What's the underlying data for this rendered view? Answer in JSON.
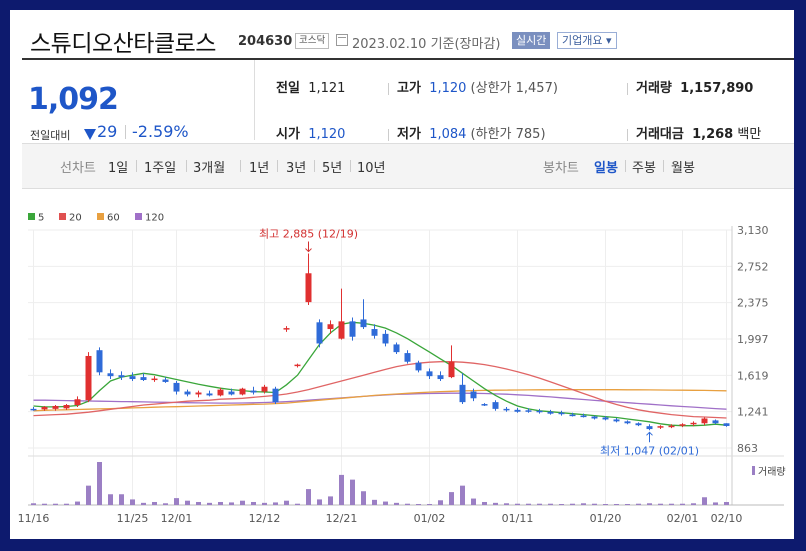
{
  "header": {
    "stock_name": "스튜디오산타클로스",
    "stock_code": "204630",
    "market_badge": "코스닥",
    "date_text": "2023.02.10  기준(장마감)",
    "realtime_badge": "실시간",
    "company_info_badge": "기업개요 ▾"
  },
  "price": {
    "current": "1,092",
    "change_label": "전일대비",
    "change_value": "29",
    "change_pct": "-2.59%"
  },
  "stats": {
    "prev_close_label": "전일",
    "prev_close": "1,121",
    "high_label": "고가",
    "high": "1,120",
    "upper_limit": "(상한가 1,457)",
    "volume_label": "거래량",
    "volume": "1,157,890",
    "open_label": "시가",
    "open": "1,120",
    "low_label": "저가",
    "low": "1,084",
    "lower_limit": "(하한가 785)",
    "amount_label": "거래대금",
    "amount": "1,268",
    "amount_unit": "백만"
  },
  "tabs": {
    "line_chart_label": "선차트",
    "periods": [
      "1일",
      "1주일",
      "3개월",
      "1년",
      "3년",
      "5년",
      "10년"
    ],
    "candle_chart_label": "봉차트",
    "candle_periods": [
      "일봉",
      "주봉",
      "월봉"
    ],
    "active_candle": "일봉"
  },
  "chart_data": {
    "type": "candlestick",
    "ylim": [
      863,
      3130
    ],
    "y_ticks": [
      "3,130",
      "2,752",
      "2,375",
      "1,997",
      "1,619",
      "1,241",
      "863"
    ],
    "x_ticks": [
      "11/16",
      "11/25",
      "12/01",
      "12/12",
      "12/21",
      "01/02",
      "01/11",
      "01/20",
      "02/01",
      "02/10"
    ],
    "legend": [
      {
        "name": "5",
        "color": "#3aa63a"
      },
      {
        "name": "20",
        "color": "#e05050"
      },
      {
        "name": "60",
        "color": "#e8a040"
      },
      {
        "name": "120",
        "color": "#a070c8"
      }
    ],
    "colors": {
      "up": "#e03030",
      "down": "#2f6bd8",
      "ma5": "#3aa63a",
      "ma20": "#e06565",
      "ma60": "#e8a040",
      "ma120": "#a070c8",
      "volume": "#9b7fc4"
    },
    "annotations": {
      "high_label": "최고 2,885 (12/19)",
      "low_label": "최저 1,047 (02/01)"
    },
    "volume_label": "거래량",
    "candles": [
      {
        "o": 1270,
        "h": 1290,
        "l": 1250,
        "c": 1265
      },
      {
        "o": 1265,
        "h": 1300,
        "l": 1250,
        "c": 1290
      },
      {
        "o": 1270,
        "h": 1310,
        "l": 1250,
        "c": 1300
      },
      {
        "o": 1275,
        "h": 1320,
        "l": 1260,
        "c": 1310
      },
      {
        "o": 1310,
        "h": 1400,
        "l": 1290,
        "c": 1370
      },
      {
        "o": 1360,
        "h": 1860,
        "l": 1340,
        "c": 1820
      },
      {
        "o": 1880,
        "h": 1910,
        "l": 1620,
        "c": 1650
      },
      {
        "o": 1640,
        "h": 1680,
        "l": 1580,
        "c": 1610
      },
      {
        "o": 1620,
        "h": 1660,
        "l": 1570,
        "c": 1600
      },
      {
        "o": 1610,
        "h": 1650,
        "l": 1560,
        "c": 1580
      },
      {
        "o": 1600,
        "h": 1640,
        "l": 1560,
        "c": 1570
      },
      {
        "o": 1570,
        "h": 1610,
        "l": 1550,
        "c": 1585
      },
      {
        "o": 1575,
        "h": 1600,
        "l": 1540,
        "c": 1550
      },
      {
        "o": 1540,
        "h": 1560,
        "l": 1420,
        "c": 1450
      },
      {
        "o": 1450,
        "h": 1470,
        "l": 1400,
        "c": 1420
      },
      {
        "o": 1420,
        "h": 1460,
        "l": 1390,
        "c": 1440
      },
      {
        "o": 1430,
        "h": 1460,
        "l": 1400,
        "c": 1410
      },
      {
        "o": 1410,
        "h": 1490,
        "l": 1400,
        "c": 1470
      },
      {
        "o": 1450,
        "h": 1480,
        "l": 1410,
        "c": 1420
      },
      {
        "o": 1420,
        "h": 1490,
        "l": 1410,
        "c": 1480
      },
      {
        "o": 1460,
        "h": 1500,
        "l": 1420,
        "c": 1440
      },
      {
        "o": 1450,
        "h": 1520,
        "l": 1430,
        "c": 1500
      },
      {
        "o": 1480,
        "h": 1500,
        "l": 1320,
        "c": 1340
      },
      {
        "o": 2100,
        "h": 2130,
        "l": 2070,
        "c": 2110
      },
      {
        "o": 1720,
        "h": 1740,
        "l": 1700,
        "c": 1730
      },
      {
        "o": 2380,
        "h": 2885,
        "l": 2350,
        "c": 2680
      },
      {
        "o": 2170,
        "h": 2200,
        "l": 1910,
        "c": 1950
      },
      {
        "o": 2100,
        "h": 2190,
        "l": 2050,
        "c": 2150
      },
      {
        "o": 2000,
        "h": 2520,
        "l": 1990,
        "c": 2180
      },
      {
        "o": 2180,
        "h": 2220,
        "l": 1980,
        "c": 2020
      },
      {
        "o": 2200,
        "h": 2410,
        "l": 2100,
        "c": 2120
      },
      {
        "o": 2100,
        "h": 2150,
        "l": 2000,
        "c": 2030
      },
      {
        "o": 2050,
        "h": 2090,
        "l": 1920,
        "c": 1950
      },
      {
        "o": 1940,
        "h": 1960,
        "l": 1840,
        "c": 1860
      },
      {
        "o": 1850,
        "h": 1880,
        "l": 1740,
        "c": 1760
      },
      {
        "o": 1750,
        "h": 1770,
        "l": 1650,
        "c": 1670
      },
      {
        "o": 1660,
        "h": 1690,
        "l": 1580,
        "c": 1610
      },
      {
        "o": 1620,
        "h": 1660,
        "l": 1560,
        "c": 1580
      },
      {
        "o": 1600,
        "h": 1930,
        "l": 1590,
        "c": 1760
      },
      {
        "o": 1520,
        "h": 1640,
        "l": 1320,
        "c": 1340
      },
      {
        "o": 1450,
        "h": 1480,
        "l": 1350,
        "c": 1380
      },
      {
        "o": 1320,
        "h": 1330,
        "l": 1300,
        "c": 1310
      },
      {
        "o": 1340,
        "h": 1360,
        "l": 1250,
        "c": 1270
      },
      {
        "o": 1270,
        "h": 1290,
        "l": 1240,
        "c": 1260
      },
      {
        "o": 1260,
        "h": 1280,
        "l": 1230,
        "c": 1240
      },
      {
        "o": 1255,
        "h": 1275,
        "l": 1230,
        "c": 1245
      },
      {
        "o": 1250,
        "h": 1270,
        "l": 1220,
        "c": 1240
      },
      {
        "o": 1240,
        "h": 1260,
        "l": 1210,
        "c": 1220
      },
      {
        "o": 1230,
        "h": 1250,
        "l": 1200,
        "c": 1215
      },
      {
        "o": 1210,
        "h": 1230,
        "l": 1190,
        "c": 1205
      },
      {
        "o": 1200,
        "h": 1220,
        "l": 1180,
        "c": 1195
      },
      {
        "o": 1190,
        "h": 1200,
        "l": 1160,
        "c": 1170
      },
      {
        "o": 1180,
        "h": 1195,
        "l": 1150,
        "c": 1160
      },
      {
        "o": 1160,
        "h": 1175,
        "l": 1130,
        "c": 1140
      },
      {
        "o": 1140,
        "h": 1150,
        "l": 1110,
        "c": 1120
      },
      {
        "o": 1120,
        "h": 1130,
        "l": 1090,
        "c": 1100
      },
      {
        "o": 1090,
        "h": 1110,
        "l": 1047,
        "c": 1060
      },
      {
        "o": 1080,
        "h": 1100,
        "l": 1060,
        "c": 1090
      },
      {
        "o": 1090,
        "h": 1110,
        "l": 1070,
        "c": 1095
      },
      {
        "o": 1100,
        "h": 1120,
        "l": 1080,
        "c": 1110
      },
      {
        "o": 1110,
        "h": 1140,
        "l": 1090,
        "c": 1125
      },
      {
        "o": 1120,
        "h": 1180,
        "l": 1100,
        "c": 1170
      },
      {
        "o": 1150,
        "h": 1160,
        "l": 1110,
        "c": 1121
      },
      {
        "o": 1120,
        "h": 1120,
        "l": 1084,
        "c": 1092
      }
    ],
    "volume_rel": [
      0.04,
      0.03,
      0.03,
      0.03,
      0.08,
      0.45,
      1.0,
      0.25,
      0.25,
      0.13,
      0.05,
      0.07,
      0.04,
      0.16,
      0.1,
      0.07,
      0.05,
      0.07,
      0.06,
      0.1,
      0.07,
      0.05,
      0.06,
      0.1,
      0.03,
      0.37,
      0.13,
      0.2,
      0.7,
      0.59,
      0.32,
      0.12,
      0.08,
      0.05,
      0.03,
      0.02,
      0.02,
      0.11,
      0.3,
      0.45,
      0.15,
      0.07,
      0.05,
      0.04,
      0.03,
      0.03,
      0.03,
      0.03,
      0.02,
      0.03,
      0.04,
      0.03,
      0.02,
      0.02,
      0.02,
      0.03,
      0.04,
      0.03,
      0.03,
      0.03,
      0.04,
      0.18,
      0.06,
      0.07
    ],
    "ma5": [
      1300,
      1290,
      1290,
      1295,
      1305,
      1350,
      1460,
      1560,
      1600,
      1620,
      1640,
      1625,
      1600,
      1575,
      1550,
      1525,
      1505,
      1485,
      1470,
      1460,
      1450,
      1445,
      1440,
      1520,
      1620,
      1780,
      1940,
      2060,
      2150,
      2170,
      2160,
      2140,
      2110,
      2060,
      2000,
      1930,
      1860,
      1790,
      1720,
      1640,
      1560,
      1480,
      1410,
      1350,
      1300,
      1270,
      1250,
      1240,
      1230,
      1220,
      1210,
      1200,
      1190,
      1180,
      1165,
      1150,
      1135,
      1115,
      1100,
      1095,
      1095,
      1100,
      1110,
      1100
    ],
    "ma20": [
      1200,
      1205,
      1210,
      1215,
      1225,
      1235,
      1250,
      1265,
      1280,
      1295,
      1310,
      1320,
      1330,
      1340,
      1350,
      1355,
      1360,
      1370,
      1375,
      1380,
      1390,
      1400,
      1410,
      1425,
      1445,
      1470,
      1500,
      1530,
      1560,
      1590,
      1620,
      1650,
      1680,
      1710,
      1730,
      1745,
      1755,
      1760,
      1760,
      1755,
      1745,
      1730,
      1710,
      1685,
      1655,
      1625,
      1590,
      1550,
      1510,
      1470,
      1430,
      1390,
      1350,
      1315,
      1285,
      1260,
      1240,
      1225,
      1210,
      1200,
      1190,
      1185,
      1180,
      1175
    ],
    "ma60": [
      1250,
      1255,
      1258,
      1260,
      1263,
      1267,
      1270,
      1273,
      1276,
      1280,
      1283,
      1287,
      1290,
      1293,
      1296,
      1300,
      1303,
      1306,
      1310,
      1313,
      1317,
      1320,
      1325,
      1330,
      1340,
      1350,
      1360,
      1370,
      1380,
      1390,
      1400,
      1410,
      1418,
      1425,
      1432,
      1438,
      1444,
      1449,
      1453,
      1457,
      1460,
      1462,
      1464,
      1465,
      1466,
      1467,
      1468,
      1468,
      1469,
      1469,
      1469,
      1469,
      1469,
      1469,
      1468,
      1468,
      1467,
      1466,
      1465,
      1464,
      1463,
      1462,
      1460,
      1458
    ],
    "ma120": [
      1360,
      1360,
      1358,
      1356,
      1354,
      1352,
      1350,
      1348,
      1346,
      1344,
      1342,
      1340,
      1338,
      1336,
      1334,
      1332,
      1331,
      1330,
      1330,
      1331,
      1333,
      1336,
      1340,
      1345,
      1352,
      1360,
      1368,
      1376,
      1384,
      1392,
      1400,
      1408,
      1414,
      1420,
      1424,
      1428,
      1430,
      1432,
      1433,
      1433,
      1432,
      1430,
      1426,
      1422,
      1416,
      1410,
      1402,
      1394,
      1385,
      1376,
      1367,
      1358,
      1350,
      1342,
      1334,
      1326,
      1318,
      1310,
      1302,
      1295,
      1288,
      1280,
      1273,
      1266
    ]
  }
}
